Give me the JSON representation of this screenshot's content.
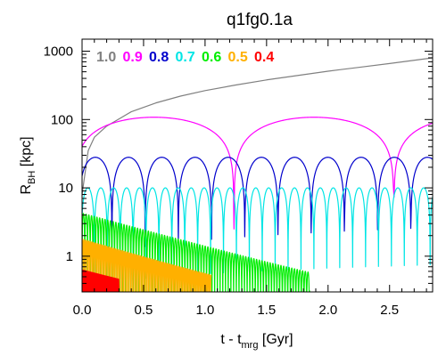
{
  "chart_data": {
    "type": "line",
    "title": "q1fg0.1a",
    "xlabel": "t - t",
    "xlabel_sub": "mrg",
    "xlabel_unit": " [Gyr]",
    "ylabel": "R",
    "ylabel_sub": "BH",
    "ylabel_unit": " [kpc]",
    "xlim": [
      0.0,
      2.85
    ],
    "ylim": [
      0.3,
      1500
    ],
    "yscale": "log",
    "grid": false,
    "legend_position": "top-left (inside plot, single row)",
    "x_ticks": [
      {
        "value": 0.0,
        "label": "0.0"
      },
      {
        "value": 0.5,
        "label": "0.5"
      },
      {
        "value": 1.0,
        "label": "1.0"
      },
      {
        "value": 1.5,
        "label": "1.5"
      },
      {
        "value": 2.0,
        "label": "2.0"
      },
      {
        "value": 2.5,
        "label": "2.5"
      }
    ],
    "y_ticks": [
      {
        "value": 1,
        "label": "1"
      },
      {
        "value": 10,
        "label": "10"
      },
      {
        "value": 100,
        "label": "100"
      },
      {
        "value": 1000,
        "label": "1000"
      }
    ],
    "series": [
      {
        "name": "1.0",
        "color": "#808080",
        "mode": "escape",
        "points": [
          [
            0.0,
            8
          ],
          [
            0.05,
            35
          ],
          [
            0.1,
            55
          ],
          [
            0.2,
            80
          ],
          [
            0.4,
            130
          ],
          [
            0.6,
            175
          ],
          [
            0.8,
            220
          ],
          [
            1.0,
            265
          ],
          [
            1.25,
            320
          ],
          [
            1.5,
            380
          ],
          [
            1.75,
            440
          ],
          [
            2.0,
            510
          ],
          [
            2.25,
            580
          ],
          [
            2.5,
            660
          ],
          [
            2.85,
            800
          ]
        ]
      },
      {
        "name": "0.9",
        "color": "#ff00ff",
        "mode": "orbit",
        "apocenter": 108,
        "pericenter": 2.5,
        "period": 1.3,
        "start_phase": 0.05,
        "t_end": 2.85
      },
      {
        "name": "0.8",
        "color": "#0000cc",
        "mode": "orbit",
        "apocenter": 28,
        "pericenter": 0.6,
        "period": 0.27,
        "start_phase": 0.1,
        "t_end": 2.85
      },
      {
        "name": "0.7",
        "color": "#00e5e5",
        "mode": "orbit",
        "apocenter": 10,
        "pericenter": 0.3,
        "period": 0.105,
        "start_phase": 0.05,
        "t_end": 2.85
      },
      {
        "name": "0.6",
        "color": "#00ee00",
        "mode": "decaying",
        "apocenter_start": 4.2,
        "apocenter_end": 0.5,
        "period": 0.022,
        "t_end": 1.85
      },
      {
        "name": "0.5",
        "color": "#ffb000",
        "mode": "decaying",
        "apocenter_start": 1.7,
        "apocenter_end": 0.45,
        "period": 0.012,
        "t_end": 1.05
      },
      {
        "name": "0.4",
        "color": "#ff0000",
        "mode": "decaying",
        "apocenter_start": 0.55,
        "apocenter_end": 0.38,
        "period": 0.006,
        "t_end": 0.3
      }
    ]
  }
}
